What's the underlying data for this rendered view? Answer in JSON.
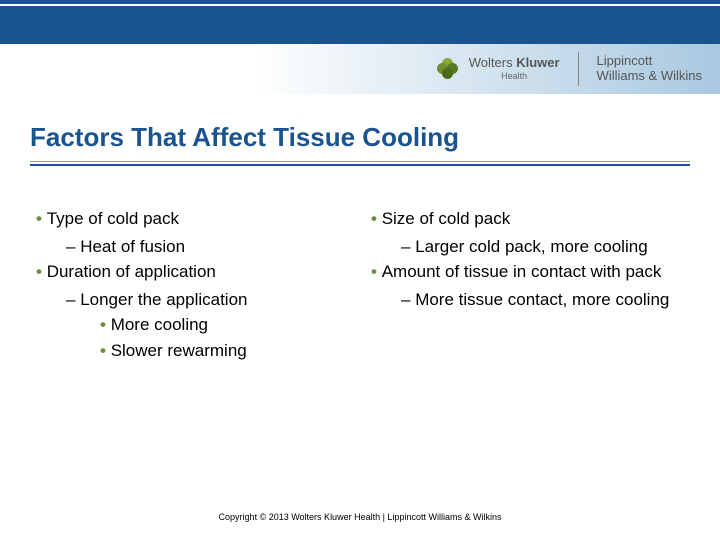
{
  "brand": {
    "wk_line": "Wolters Kluwer",
    "wk_sub": "Health",
    "lww_top": "Lippincott",
    "lww_bottom": "Williams & Wilkins"
  },
  "title": "Factors That Affect Tissue Cooling",
  "left": {
    "i0": "Type of cold pack",
    "i0a": "Heat of fusion",
    "i1": "Duration of application",
    "i1a": "Longer the application",
    "i1a1": "More cooling",
    "i1a2": "Slower rewarming"
  },
  "right": {
    "i0": "Size of cold pack",
    "i0a": "Larger cold pack, more cooling",
    "i1": "Amount of tissue in contact with pack",
    "i1a": "More tissue contact, more cooling"
  },
  "footer": "Copyright © 2013 Wolters Kluwer Health | Lippincott Williams & Wilkins",
  "colors": {
    "brand_blue": "#1a5490",
    "bullet_green": "#6a8f3a"
  }
}
